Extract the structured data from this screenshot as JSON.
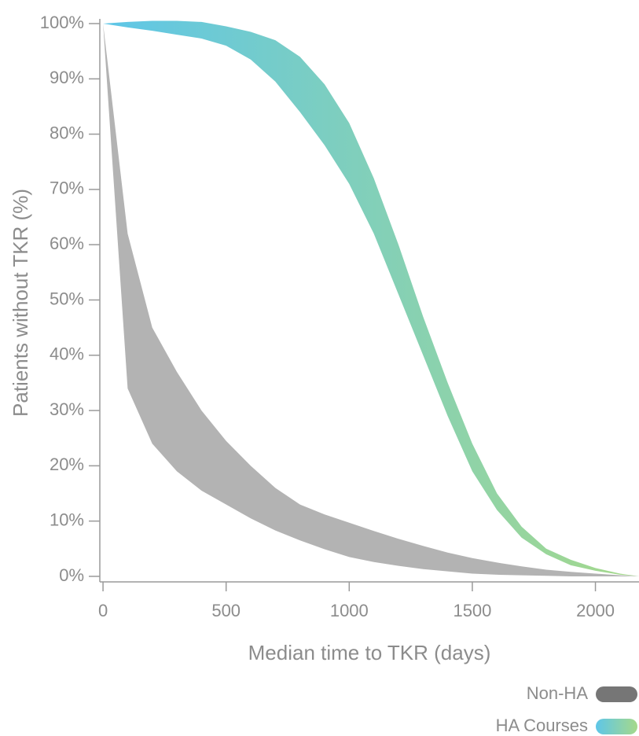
{
  "chart_data": {
    "type": "band",
    "xlabel": "Median time to TKR (days)",
    "ylabel": "Patients without TKR (%)",
    "x": [
      0,
      100,
      200,
      300,
      400,
      500,
      600,
      700,
      800,
      900,
      1000,
      1100,
      1200,
      1300,
      1400,
      1500,
      1600,
      1700,
      1800,
      1900,
      2000,
      2100,
      2180
    ],
    "series": [
      {
        "name": "Non-HA",
        "color": "#b3b3b3",
        "legend_color": "#767676",
        "upper": [
          100,
          62,
          45,
          37,
          30,
          24.5,
          20,
          16,
          13,
          11.2,
          9.7,
          8.2,
          6.8,
          5.5,
          4.3,
          3.3,
          2.5,
          1.8,
          1.2,
          0.8,
          0.5,
          0.2,
          0
        ],
        "lower": [
          100,
          34,
          24,
          19,
          15.5,
          13,
          10.5,
          8.3,
          6.5,
          4.9,
          3.5,
          2.6,
          1.9,
          1.3,
          0.9,
          0.5,
          0.3,
          0.2,
          0.1,
          0,
          0,
          0,
          0
        ]
      },
      {
        "name": "HA Courses",
        "colors": [
          "#5ec6e8",
          "#a6d98a"
        ],
        "upper": [
          100,
          100.3,
          100.5,
          100.5,
          100.3,
          99.5,
          98.5,
          97,
          94,
          89,
          82,
          72,
          60,
          47,
          35,
          24,
          15,
          9,
          5,
          3,
          1.5,
          0.5,
          0
        ],
        "lower": [
          100,
          99.3,
          98.7,
          98,
          97.3,
          96,
          93.5,
          89.5,
          84,
          78,
          71,
          62,
          51,
          40,
          29,
          19,
          12,
          7,
          4,
          2,
          1,
          0.3,
          0
        ]
      }
    ],
    "xlim": [
      -13,
      2177
    ],
    "ylim": [
      -1,
      100
    ],
    "xticks": [
      0,
      500,
      1000,
      1500,
      2000
    ],
    "yticks": [
      {
        "value": 0,
        "label": "0%"
      },
      {
        "value": 10,
        "label": "10%"
      },
      {
        "value": 20,
        "label": "20%"
      },
      {
        "value": 30,
        "label": "30%"
      },
      {
        "value": 40,
        "label": "40%"
      },
      {
        "value": 50,
        "label": "50%"
      },
      {
        "value": 60,
        "label": "60%"
      },
      {
        "value": 70,
        "label": "70%"
      },
      {
        "value": 80,
        "label": "80%"
      },
      {
        "value": 90,
        "label": "90%"
      },
      {
        "value": 100,
        "label": "100%"
      }
    ]
  }
}
